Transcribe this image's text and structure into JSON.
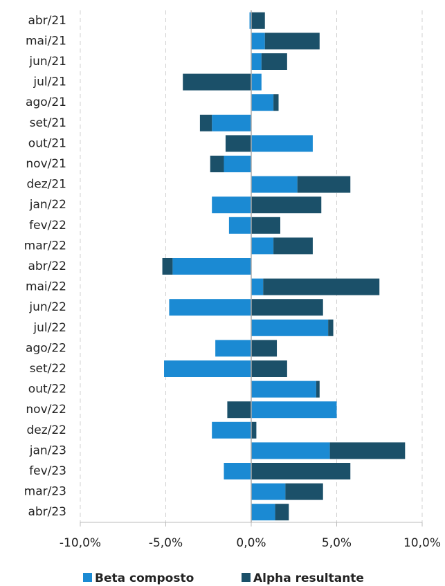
{
  "chart_data": {
    "type": "stacked-barh",
    "categories": [
      "abr/21",
      "mai/21",
      "jun/21",
      "jul/21",
      "ago/21",
      "set/21",
      "out/21",
      "nov/21",
      "dez/21",
      "jan/22",
      "fev/22",
      "mar/22",
      "abr/22",
      "mai/22",
      "jun/22",
      "jul/22",
      "ago/22",
      "set/22",
      "out/22",
      "nov/22",
      "dez/22",
      "jan/23",
      "fev/23",
      "mar/23",
      "abr/23"
    ],
    "series": [
      {
        "name": "Beta composto",
        "color": "#1b8ad3",
        "values": [
          -0.1,
          0.8,
          0.6,
          0.6,
          1.3,
          -2.3,
          3.6,
          -1.6,
          2.7,
          -2.3,
          -1.3,
          1.3,
          -4.6,
          0.7,
          -4.8,
          4.5,
          -2.1,
          -5.1,
          3.8,
          5.0,
          -2.3,
          4.6,
          -1.6,
          2.0,
          1.4
        ]
      },
      {
        "name": "Alpha resultante",
        "color": "#1b5069",
        "values": [
          0.8,
          3.2,
          1.5,
          -4.0,
          0.3,
          -0.7,
          -1.5,
          -0.8,
          3.1,
          4.1,
          1.7,
          2.3,
          -0.6,
          6.8,
          4.2,
          0.3,
          1.5,
          2.1,
          0.2,
          -1.4,
          0.3,
          4.4,
          5.8,
          2.2,
          0.8
        ]
      }
    ],
    "xlim": [
      -10,
      10
    ],
    "xticks": [
      {
        "value": -10,
        "label": "-10,0%"
      },
      {
        "value": -5,
        "label": "-5,0%"
      },
      {
        "value": 0,
        "label": "0,0%"
      },
      {
        "value": 5,
        "label": "5,0%"
      },
      {
        "value": 10,
        "label": "10,0%"
      }
    ],
    "grid": true,
    "legend": "bottom"
  }
}
